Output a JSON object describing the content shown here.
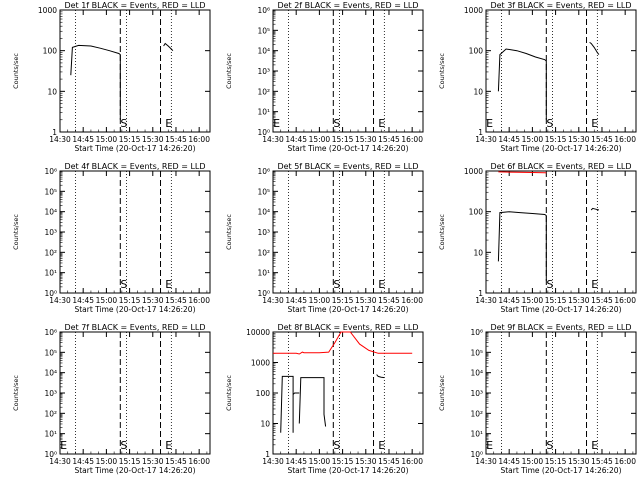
{
  "start_time_label": "Start Time (20-Oct-17 14:26:20)",
  "colors": {
    "events": "#000000",
    "lld": "#ff0000",
    "background": "#ffffff"
  },
  "chart_data": [
    {
      "type": "line",
      "detector": "1f",
      "title": "Det 1f BLACK = Events, RED = LLD",
      "ylabel": "Counts/sec",
      "yscale": "log",
      "ylim": [
        1,
        1000
      ],
      "yticks": [
        "1",
        "10",
        "100",
        "1000"
      ],
      "xlim": [
        "14:30",
        "16:07"
      ],
      "xticks": [
        "14:30",
        "14:45",
        "15:00",
        "15:15",
        "15:30",
        "15:45",
        "16:00"
      ],
      "marker_s": "15:10",
      "marker_e": "15:39",
      "dotted_lines": [
        "14:40",
        "15:13",
        "15:42"
      ],
      "dashed_lines": [
        "15:09",
        "15:35"
      ],
      "grid": false,
      "markers": [
        {
          "label": "S",
          "x": "15:10"
        },
        {
          "label": "E",
          "x": "15:39"
        }
      ],
      "series": [
        {
          "color": "#000000",
          "segments": [
            {
              "x": [
                "14:37",
                "14:38",
                "14:42",
                "14:50",
                "14:56",
                "15:02",
                "15:08",
                "15:09",
                "15:09"
              ],
              "y": [
                25,
                120,
                135,
                130,
                115,
                100,
                85,
                80,
                2
              ]
            },
            {
              "x": [
                "15:37",
                "15:38",
                "15:40",
                "15:42",
                "15:43"
              ],
              "y": [
                130,
                150,
                130,
                110,
                100
              ]
            }
          ]
        }
      ]
    },
    {
      "type": "line",
      "detector": "2f",
      "title": "Det 2f BLACK = Events, RED = LLD",
      "ylabel": "Counts/sec",
      "yscale": "log",
      "ylim": [
        1,
        1000000
      ],
      "yticks": [
        "10⁰",
        "10¹",
        "10²",
        "10³",
        "10⁴",
        "10⁵",
        "10⁶"
      ],
      "xlim": [
        "14:30",
        "16:07"
      ],
      "xticks": [
        "14:30",
        "14:45",
        "15:00",
        "15:15",
        "15:30",
        "15:45",
        "16:00"
      ],
      "marker_s": "15:10",
      "marker_e": "15:39",
      "dotted_lines": [
        "14:40",
        "15:13",
        "15:42"
      ],
      "dashed_lines": [
        "15:09",
        "15:35"
      ],
      "grid": false,
      "markers": [
        {
          "label": "E",
          "x": "14:31"
        },
        {
          "label": "S",
          "x": "15:10"
        },
        {
          "label": "E",
          "x": "15:39"
        }
      ],
      "series": []
    },
    {
      "type": "line",
      "detector": "3f",
      "title": "Det 3f BLACK = Events, RED = LLD",
      "ylabel": "Counts/sec",
      "yscale": "log",
      "ylim": [
        1,
        1000
      ],
      "yticks": [
        "1",
        "10",
        "100",
        "1000"
      ],
      "xlim": [
        "14:30",
        "16:07"
      ],
      "xticks": [
        "14:30",
        "14:45",
        "15:00",
        "15:15",
        "15:30",
        "15:45",
        "16:00"
      ],
      "marker_s": "15:10",
      "marker_e": "15:39",
      "dotted_lines": [
        "14:40",
        "15:13",
        "15:42"
      ],
      "dashed_lines": [
        "15:09",
        "15:35"
      ],
      "grid": false,
      "markers": [
        {
          "label": "E",
          "x": "14:31"
        },
        {
          "label": "S",
          "x": "15:10"
        },
        {
          "label": "E",
          "x": "15:39"
        }
      ],
      "series": [
        {
          "color": "#000000",
          "segments": [
            {
              "x": [
                "14:38",
                "14:39",
                "14:43",
                "14:50",
                "14:56",
                "15:02",
                "15:08",
                "15:09",
                "15:09"
              ],
              "y": [
                10,
                80,
                110,
                100,
                85,
                70,
                60,
                55,
                2
              ]
            },
            {
              "x": [
                "15:37",
                "15:38",
                "15:40",
                "15:42",
                "15:43"
              ],
              "y": [
                160,
                150,
                120,
                90,
                80
              ]
            }
          ]
        }
      ]
    },
    {
      "type": "line",
      "detector": "4f",
      "title": "Det 4f BLACK = Events, RED = LLD",
      "ylabel": "Counts/sec",
      "yscale": "log",
      "ylim": [
        1,
        1000000
      ],
      "yticks": [
        "10⁰",
        "10¹",
        "10²",
        "10³",
        "10⁴",
        "10⁵",
        "10⁶"
      ],
      "xlim": [
        "14:30",
        "16:07"
      ],
      "xticks": [
        "14:30",
        "14:45",
        "15:00",
        "15:15",
        "15:30",
        "15:45",
        "16:00"
      ],
      "marker_s": "15:10",
      "marker_e": "15:39",
      "dotted_lines": [
        "14:40",
        "15:13",
        "15:42"
      ],
      "dashed_lines": [
        "15:09",
        "15:35"
      ],
      "grid": false,
      "markers": [
        {
          "label": "S",
          "x": "15:10"
        },
        {
          "label": "E",
          "x": "15:39"
        }
      ],
      "series": []
    },
    {
      "type": "line",
      "detector": "5f",
      "title": "Det 5f BLACK = Events, RED = LLD",
      "ylabel": "Counts/sec",
      "yscale": "log",
      "ylim": [
        1,
        1000000
      ],
      "yticks": [
        "10⁰",
        "10¹",
        "10²",
        "10³",
        "10⁴",
        "10⁵",
        "10⁶"
      ],
      "xlim": [
        "14:30",
        "16:07"
      ],
      "xticks": [
        "14:30",
        "14:45",
        "15:00",
        "15:15",
        "15:30",
        "15:45",
        "16:00"
      ],
      "marker_s": "15:10",
      "marker_e": "15:39",
      "dotted_lines": [
        "14:40",
        "15:13",
        "15:42"
      ],
      "dashed_lines": [
        "15:09",
        "15:35"
      ],
      "grid": false,
      "markers": [
        {
          "label": "S",
          "x": "15:10"
        },
        {
          "label": "E",
          "x": "15:39"
        }
      ],
      "series": []
    },
    {
      "type": "line",
      "detector": "6f",
      "title": "Det 6f BLACK = Events, RED = LLD",
      "ylabel": "Counts/sec",
      "yscale": "log",
      "ylim": [
        1,
        1000
      ],
      "yticks": [
        "1",
        "10",
        "100",
        "1000"
      ],
      "xlim": [
        "14:30",
        "16:07"
      ],
      "xticks": [
        "14:30",
        "14:45",
        "15:00",
        "15:15",
        "15:30",
        "15:45",
        "16:00"
      ],
      "marker_s": "15:10",
      "marker_e": "15:39",
      "dotted_lines": [
        "14:40",
        "15:13",
        "15:42"
      ],
      "dashed_lines": [
        "15:09",
        "15:35"
      ],
      "grid": false,
      "markers": [
        {
          "label": "S",
          "x": "15:10"
        },
        {
          "label": "E",
          "x": "15:39"
        }
      ],
      "series": [
        {
          "color": "#ff0000",
          "segments": [
            {
              "x": [
                "14:38",
                "14:50",
                "15:00",
                "15:08",
                "15:09"
              ],
              "y": [
                950,
                930,
                920,
                910,
                900
              ]
            }
          ]
        },
        {
          "color": "#000000",
          "segments": [
            {
              "x": [
                "14:38",
                "14:39",
                "14:45",
                "14:52",
                "15:00",
                "15:08",
                "15:09",
                "15:09"
              ],
              "y": [
                6,
                95,
                100,
                95,
                90,
                85,
                80,
                2
              ]
            },
            {
              "x": [
                "15:38",
                "15:39",
                "15:41",
                "15:43"
              ],
              "y": [
                110,
                120,
                115,
                110
              ]
            }
          ]
        }
      ]
    },
    {
      "type": "line",
      "detector": "7f",
      "title": "Det 7f BLACK = Events, RED = LLD",
      "ylabel": "Counts/sec",
      "yscale": "log",
      "ylim": [
        1,
        1000000
      ],
      "yticks": [
        "10⁰",
        "10¹",
        "10²",
        "10³",
        "10⁴",
        "10⁵",
        "10⁶"
      ],
      "xlim": [
        "14:30",
        "16:07"
      ],
      "xticks": [
        "14:30",
        "14:45",
        "15:00",
        "15:15",
        "15:30",
        "15:45",
        "16:00"
      ],
      "marker_s": "15:10",
      "marker_e": "15:39",
      "dotted_lines": [
        "14:40",
        "15:13",
        "15:42"
      ],
      "dashed_lines": [
        "15:09",
        "15:35"
      ],
      "grid": false,
      "markers": [
        {
          "label": "E",
          "x": "14:31"
        },
        {
          "label": "S",
          "x": "15:10"
        },
        {
          "label": "E",
          "x": "15:39"
        }
      ],
      "series": []
    },
    {
      "type": "line",
      "detector": "8f",
      "title": "Det 8f BLACK = Events, RED = LLD",
      "ylabel": "Counts/sec",
      "yscale": "log",
      "ylim": [
        1,
        10000
      ],
      "yticks": [
        "1",
        "10",
        "100",
        "1000",
        "10000"
      ],
      "xlim": [
        "14:30",
        "16:07"
      ],
      "xticks": [
        "14:30",
        "14:45",
        "15:00",
        "15:15",
        "15:30",
        "15:45",
        "16:00"
      ],
      "marker_s": "15:10",
      "marker_e": "15:39",
      "dotted_lines": [
        "14:40",
        "15:13",
        "15:42"
      ],
      "dashed_lines": [
        "15:09",
        "15:35"
      ],
      "grid": false,
      "markers": [
        {
          "label": "S",
          "x": "15:10"
        },
        {
          "label": "E",
          "x": "15:39"
        }
      ],
      "series": [
        {
          "color": "#ff0000",
          "segments": [
            {
              "x": [
                "14:30",
                "14:45",
                "14:47",
                "14:49",
                "14:50",
                "15:00",
                "15:06",
                "15:10",
                "15:14",
                "15:20",
                "15:26",
                "15:32",
                "15:38",
                "16:00"
              ],
              "y": [
                2000,
                2000,
                1900,
                2200,
                2100,
                2100,
                2200,
                4500,
                10000,
                10000,
                4000,
                2500,
                2000,
                2000
              ]
            }
          ]
        },
        {
          "color": "#000000",
          "segments": [
            {
              "x": [
                "14:35",
                "14:36",
                "14:43",
                "14:43",
                "14:43"
              ],
              "y": [
                5,
                350,
                350,
                60,
                5
              ]
            },
            {
              "x": [
                "14:43",
                "14:44",
                "14:45",
                "14:46",
                "14:47"
              ],
              "y": [
                90,
                100,
                100,
                100,
                100
              ]
            },
            {
              "x": [
                "14:47",
                "14:48",
                "14:55",
                "15:03",
                "15:03",
                "15:04"
              ],
              "y": [
                10,
                320,
                320,
                320,
                20,
                8
              ]
            },
            {
              "x": [
                "15:37",
                "15:38",
                "15:40",
                "15:42"
              ],
              "y": [
                400,
                350,
                330,
                320
              ]
            }
          ]
        }
      ]
    },
    {
      "type": "line",
      "detector": "9f",
      "title": "Det 9f BLACK = Events, RED = LLD",
      "ylabel": "Counts/sec",
      "yscale": "log",
      "ylim": [
        1,
        1000000
      ],
      "yticks": [
        "10⁰",
        "10¹",
        "10²",
        "10³",
        "10⁴",
        "10⁵",
        "10⁶"
      ],
      "xlim": [
        "14:30",
        "16:07"
      ],
      "xticks": [
        "14:30",
        "14:45",
        "15:00",
        "15:15",
        "15:30",
        "15:45",
        "16:00"
      ],
      "marker_s": "15:10",
      "marker_e": "15:39",
      "dotted_lines": [
        "14:40",
        "15:13",
        "15:42"
      ],
      "dashed_lines": [
        "15:09",
        "15:35"
      ],
      "grid": false,
      "markers": [
        {
          "label": "E",
          "x": "14:31"
        },
        {
          "label": "S",
          "x": "15:10"
        },
        {
          "label": "E",
          "x": "15:39"
        }
      ],
      "series": []
    }
  ]
}
